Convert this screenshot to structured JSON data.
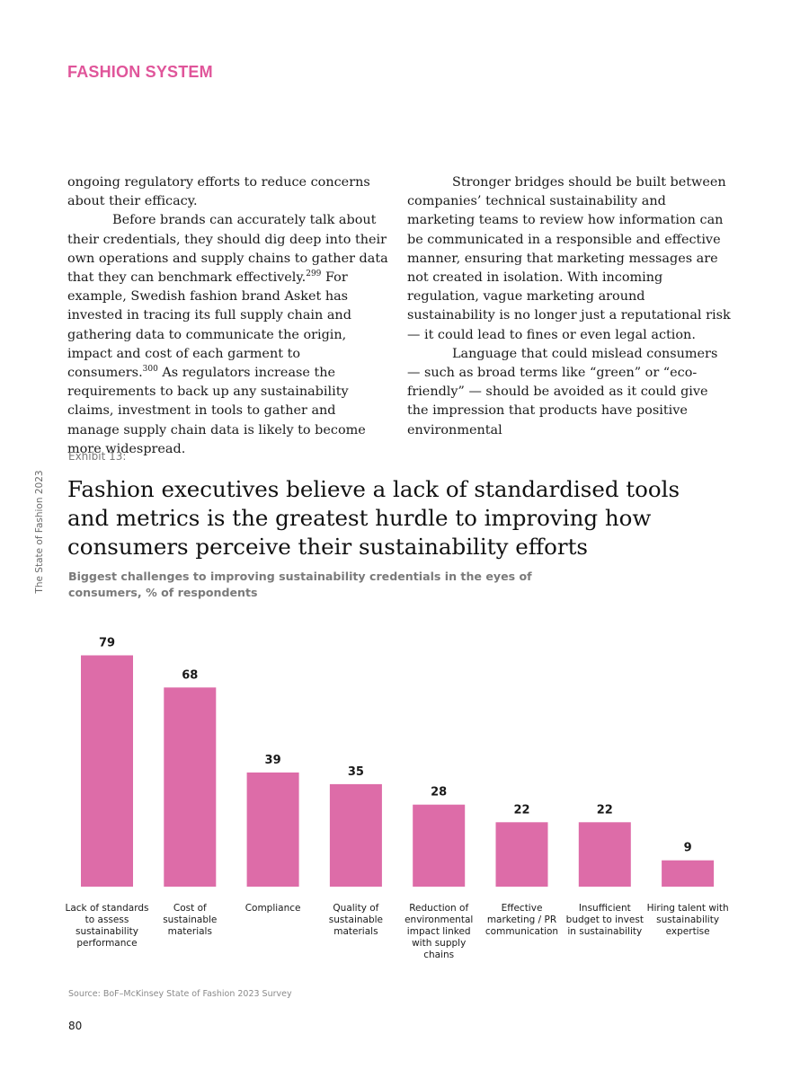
{
  "header": {
    "section": "FASHION SYSTEM"
  },
  "sidebar": {
    "publication": "The State of Fashion 2023"
  },
  "body": {
    "left": {
      "p1": "ongoing regulatory efforts to reduce concerns about their efficacy.",
      "p2a": "Before brands can accurately talk about their credentials, they should dig deep into their own operations and supply chains to gather data that they can benchmark effectively.",
      "fn1": "299",
      "p2b": " For example, Swedish fashion brand Asket has invested in tracing its full supply chain and gathering data to communicate the origin, impact and cost of each garment to consumers.",
      "fn2": "300",
      "p2c": " As regulators increase the requirements to back up any sustainability claims, investment in tools to gather and manage supply chain data is likely to become more widespread."
    },
    "right": {
      "p1": "Stronger bridges should be built between companies’ technical sustainability and marketing teams to review how information can be communicated in a responsible and effective manner, ensuring that marketing messages are not created in isolation. With incoming regulation, vague marketing around sustainability is no longer just a reputational risk — it could lead to fines or even legal action.",
      "p2": "Language that could mislead consumers — such as broad terms like “green” or “eco-friendly” — should be avoided as it could give the impression that products have positive environmental"
    }
  },
  "exhibit": {
    "label": "Exhibit 13:",
    "title": "Fashion executives believe a lack of standardised tools and metrics is the greatest hurdle to improving how consumers perceive their sustainability efforts",
    "subtitle": "Biggest challenges to improving sustainability credentials in the eyes of consumers, % of respondents",
    "source": "Source: BoF–McKinsey State of Fashion 2023 Survey"
  },
  "chart_data": {
    "type": "bar",
    "title": "Fashion executives believe a lack of standardised tools and metrics is the greatest hurdle to improving how consumers perceive their sustainability efforts",
    "subtitle": "Biggest challenges to improving sustainability credentials in the eyes of consumers, % of respondents",
    "categories": [
      "Lack of standards to assess sustainability performance",
      "Cost of sustainable materials",
      "Compliance",
      "Quality of sustainable materials",
      "Reduction of environmental impact linked with supply chains",
      "Effective marketing / PR communication",
      "Insufficient budget to invest in sustainability",
      "Hiring talent with sustainability expertise"
    ],
    "category_lines": [
      [
        "Lack of standards",
        "to assess",
        "sustainability",
        "performance"
      ],
      [
        "Cost of",
        "sustainable",
        "materials"
      ],
      [
        "Compliance"
      ],
      [
        "Quality of",
        "sustainable",
        "materials"
      ],
      [
        "Reduction of",
        "environmental",
        "impact linked",
        "with supply",
        "chains"
      ],
      [
        "Effective",
        "marketing / PR",
        "communication"
      ],
      [
        "Insufficient",
        "budget to invest",
        "in sustainability"
      ],
      [
        "Hiring talent with",
        "sustainability",
        "expertise"
      ]
    ],
    "values": [
      79,
      68,
      39,
      35,
      28,
      22,
      22,
      9
    ],
    "ylim": [
      0,
      100
    ],
    "grid": false,
    "legend": "none",
    "bar_color": "#dd6ca8"
  },
  "page": {
    "number": "80"
  }
}
